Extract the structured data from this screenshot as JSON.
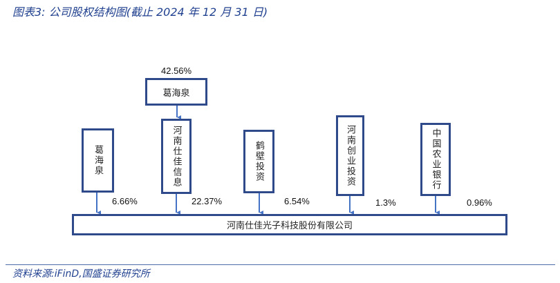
{
  "title": "图表3:  公司股权结构图(截止 2024 年 12 月 31 日)",
  "top_holder": {
    "name": "葛海泉",
    "pct": "42.56%"
  },
  "shareholders": [
    {
      "name": "葛海泉",
      "pct": "6.66%"
    },
    {
      "name": "河南仕佳信息",
      "pct": "22.37%"
    },
    {
      "name": "鹤壁投资",
      "pct": "6.54%"
    },
    {
      "name": "河南创业投资",
      "pct": "1.3%"
    },
    {
      "name": "中国农业银行",
      "pct": "0.96%"
    }
  ],
  "company": "河南仕佳光子科技股份有限公司",
  "source": "资料来源:iFinD,国盛证券研究所",
  "colors": {
    "box_border": "#2f4a8a",
    "arrow": "#4472c4",
    "title": "#1f3f8f"
  }
}
